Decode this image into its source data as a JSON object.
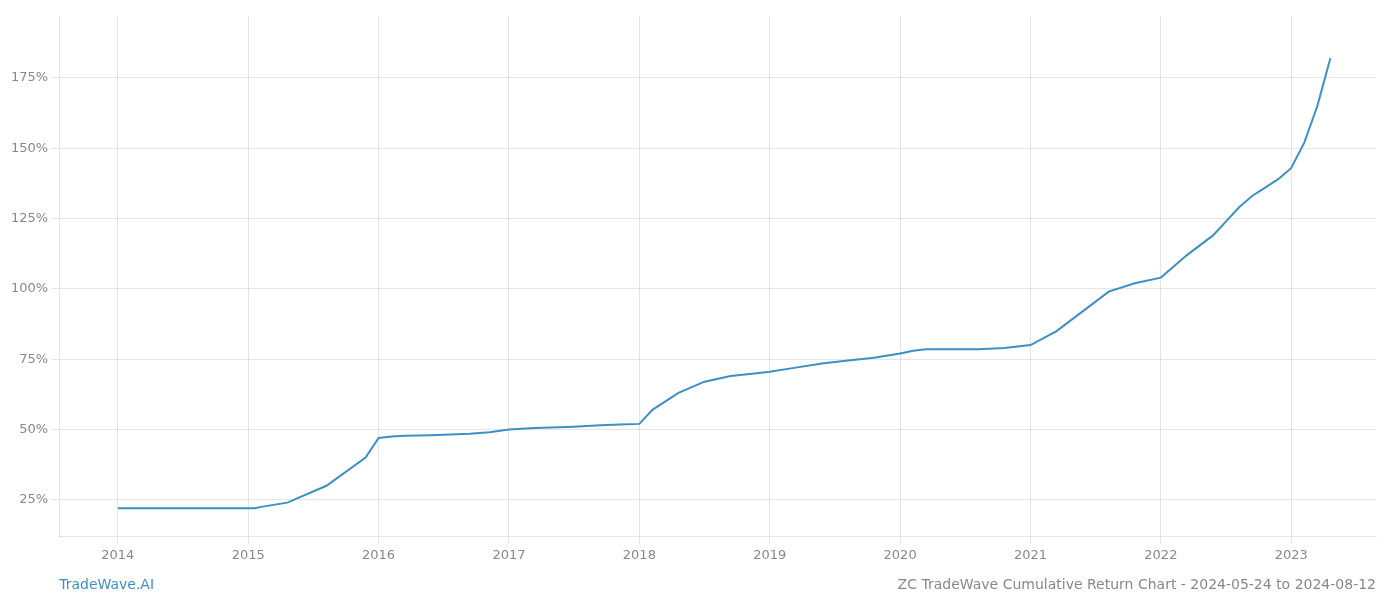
{
  "chart_data": {
    "type": "line",
    "x": [
      2014.0,
      2014.3,
      2014.7,
      2015.0,
      2015.05,
      2015.1,
      2015.3,
      2015.6,
      2015.9,
      2016.0,
      2016.1,
      2016.2,
      2016.4,
      2016.7,
      2016.85,
      2017.0,
      2017.2,
      2017.5,
      2017.7,
      2017.85,
      2018.0,
      2018.1,
      2018.3,
      2018.5,
      2018.7,
      2018.9,
      2019.0,
      2019.2,
      2019.4,
      2019.6,
      2019.8,
      2020.0,
      2020.1,
      2020.2,
      2020.4,
      2020.6,
      2020.8,
      2021.0,
      2021.2,
      2021.4,
      2021.6,
      2021.8,
      2022.0,
      2022.1,
      2022.2,
      2022.4,
      2022.5,
      2022.6,
      2022.7,
      2022.8,
      2022.9,
      2023.0,
      2023.1,
      2023.2,
      2023.3
    ],
    "values": [
      22,
      22,
      22,
      22,
      22,
      22.5,
      24,
      30,
      40,
      47,
      47.5,
      47.8,
      48,
      48.5,
      49,
      50,
      50.5,
      51,
      51.5,
      51.8,
      52,
      57,
      63,
      67,
      69,
      70,
      70.5,
      72,
      73.5,
      74.5,
      75.5,
      77,
      78,
      78.5,
      78.5,
      78.5,
      79,
      80,
      85,
      92,
      99,
      102,
      104,
      108,
      112,
      119,
      124,
      129,
      133,
      136,
      139,
      143,
      152,
      165,
      182
    ],
    "color": "#3d8fc5",
    "xlim": [
      2013.55,
      2023.65
    ],
    "xticks": [
      2014,
      2015,
      2016,
      2017,
      2018,
      2019,
      2020,
      2021,
      2022,
      2023
    ],
    "ylim": [
      12,
      197
    ],
    "yticks": [
      {
        "value": 25,
        "label": "25%"
      },
      {
        "value": 50,
        "label": "50%"
      },
      {
        "value": 75,
        "label": "75%"
      },
      {
        "value": 100,
        "label": "100%"
      },
      {
        "value": 125,
        "label": "125%"
      },
      {
        "value": 150,
        "label": "150%"
      },
      {
        "value": 175,
        "label": "175%"
      }
    ],
    "grid": true,
    "annotations": [
      "TradeWave.AI",
      "ZC TradeWave Cumulative Return Chart - 2024-05-24 to 2024-08-12"
    ]
  }
}
